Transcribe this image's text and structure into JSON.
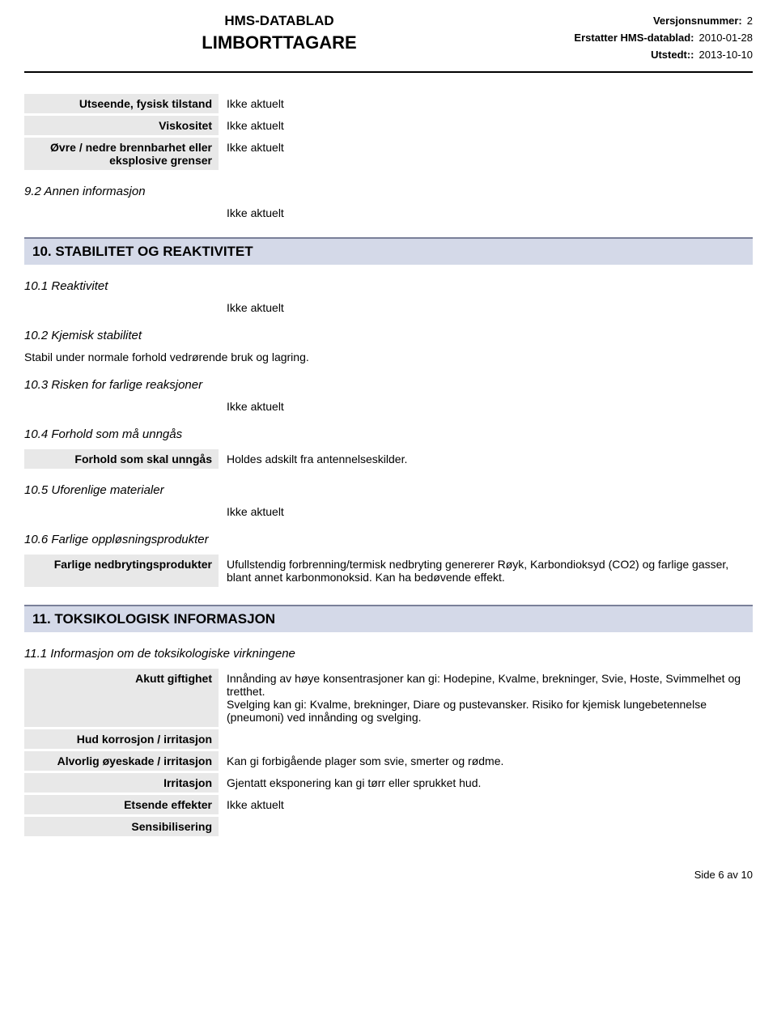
{
  "header": {
    "doc_type": "HMS-DATABLAD",
    "product": "LIMBORTTAGARE",
    "version_label": "Versjonsnummer:",
    "version_value": "2",
    "replaces_label": "Erstatter HMS-datablad:",
    "replaces_value": "2010-01-28",
    "issued_label": "Utstedt::",
    "issued_value": "2013-10-10"
  },
  "properties": [
    {
      "label": "Utseende, fysisk tilstand",
      "value": "Ikke aktuelt"
    },
    {
      "label": "Viskositet",
      "value": "Ikke aktuelt"
    },
    {
      "label": "Øvre / nedre brennbarhet eller eksplosive grenser",
      "value": "Ikke aktuelt"
    }
  ],
  "section9_2": {
    "title": "9.2 Annen informasjon",
    "value": "Ikke aktuelt"
  },
  "section10": {
    "header": "10. STABILITET OG REAKTIVITET",
    "s1": {
      "title": "10.1 Reaktivitet",
      "value": "Ikke aktuelt"
    },
    "s2": {
      "title": "10.2 Kjemisk stabilitet",
      "text": "Stabil under normale forhold vedrørende bruk og lagring."
    },
    "s3": {
      "title": "10.3 Risken for farlige reaksjoner",
      "value": "Ikke aktuelt"
    },
    "s4": {
      "title": "10.4 Forhold som må unngås",
      "row_label": "Forhold som skal unngås",
      "row_value": "Holdes adskilt fra antennelseskilder."
    },
    "s5": {
      "title": "10.5 Uforenlige materialer",
      "value": "Ikke aktuelt"
    },
    "s6": {
      "title": "10.6 Farlige oppløsningsprodukter",
      "row_label": "Farlige nedbrytingsprodukter",
      "row_value": "Ufullstendig forbrenning/termisk nedbryting genererer Røyk, Karbondioksyd (CO2) og farlige gasser, blant annet karbonmonoksid. Kan ha bedøvende effekt."
    }
  },
  "section11": {
    "header": "11. TOKSIKOLOGISK INFORMASJON",
    "s1": {
      "title": "11.1 Informasjon om de toksikologiske virkningene",
      "rows": [
        {
          "label": "Akutt giftighet",
          "value": "Innånding av høye konsentrasjoner kan gi: Hodepine, Kvalme, brekninger, Svie, Hoste, Svimmelhet og tretthet.\nSvelging kan gi: Kvalme, brekninger, Diare og pustevansker. Risiko for kjemisk lungebetennelse (pneumoni) ved innånding og svelging."
        },
        {
          "label": "Hud korrosjon / irritasjon",
          "value": ""
        },
        {
          "label": "Alvorlig øyeskade / irritasjon",
          "value": "Kan gi forbigående plager som svie, smerter og rødme."
        },
        {
          "label": "Irritasjon",
          "value": "Gjentatt eksponering kan gi tørr eller sprukket hud."
        },
        {
          "label": "Etsende effekter",
          "value": "Ikke aktuelt"
        },
        {
          "label": "Sensibilisering",
          "value": ""
        }
      ]
    }
  },
  "footer": "Side 6 av 10"
}
